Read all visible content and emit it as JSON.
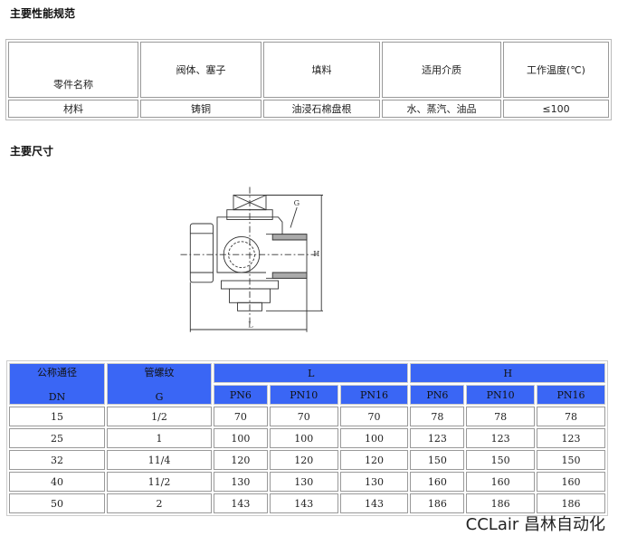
{
  "section1_title": "主要性能规范",
  "spec_table": {
    "header": [
      "零件名称",
      "阀体、塞子",
      "填料",
      "适用介质",
      "工作温度(℃)"
    ],
    "row": [
      "材料",
      "铸铜",
      "油浸石棉盘根",
      "水、蒸汽、油品",
      "≤100"
    ]
  },
  "section2_title": "主要尺寸",
  "drawing": {
    "label_g": "G",
    "label_h": "H",
    "label_l": "L"
  },
  "dim_table": {
    "col_dn": [
      "公称通径",
      "DN"
    ],
    "col_g": [
      "管螺纹",
      "G"
    ],
    "group_l": "L",
    "group_h": "H",
    "pn": [
      "PN6",
      "PN10",
      "PN16"
    ],
    "rows": [
      [
        "15",
        "1/2",
        "70",
        "70",
        "70",
        "78",
        "78",
        "78"
      ],
      [
        "25",
        "1",
        "100",
        "100",
        "100",
        "123",
        "123",
        "123"
      ],
      [
        "32",
        "11/4",
        "120",
        "120",
        "120",
        "150",
        "150",
        "150"
      ],
      [
        "40",
        "11/2",
        "130",
        "130",
        "130",
        "160",
        "160",
        "160"
      ],
      [
        "50",
        "2",
        "143",
        "143",
        "143",
        "186",
        "186",
        "186"
      ]
    ],
    "header_color": "#3a66f5"
  },
  "watermark": "CCLair 昌林自动化"
}
